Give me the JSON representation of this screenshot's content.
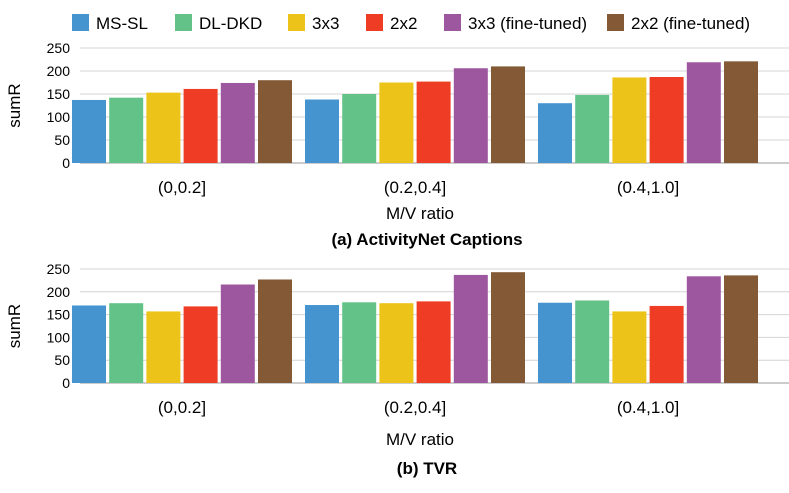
{
  "legend": [
    {
      "label": "MS-SL",
      "color": "#4594d0"
    },
    {
      "label": "DL-DKD",
      "color": "#62c288"
    },
    {
      "label": "3x3",
      "color": "#ecc319"
    },
    {
      "label": "2x2",
      "color": "#ee3d24"
    },
    {
      "label": "3x3 (fine-tuned)",
      "color": "#9d579f"
    },
    {
      "label": "2x2 (fine-tuned)",
      "color": "#835a35"
    }
  ],
  "chart_data": [
    {
      "type": "bar",
      "title": "(a) ActivityNet Captions",
      "xlabel": "M/V ratio",
      "ylabel": "sumR",
      "ylim": [
        0,
        250
      ],
      "yticks": [
        0,
        50,
        100,
        150,
        200,
        250
      ],
      "categories": [
        "(0,0.2]",
        "(0.2,0.4]",
        "(0.4,1.0]"
      ],
      "series": [
        {
          "name": "MS-SL",
          "values": [
            137,
            138,
            130
          ]
        },
        {
          "name": "DL-DKD",
          "values": [
            142,
            150,
            148
          ]
        },
        {
          "name": "3x3",
          "values": [
            153,
            175,
            186
          ]
        },
        {
          "name": "2x2",
          "values": [
            161,
            177,
            187
          ]
        },
        {
          "name": "3x3 (fine-tuned)",
          "values": [
            174,
            206,
            219
          ]
        },
        {
          "name": "2x2 (fine-tuned)",
          "values": [
            180,
            210,
            221
          ]
        }
      ]
    },
    {
      "type": "bar",
      "title": "(b) TVR",
      "xlabel": "M/V ratio",
      "ylabel": "sumR",
      "ylim": [
        0,
        250
      ],
      "yticks": [
        0,
        50,
        100,
        150,
        200,
        250
      ],
      "categories": [
        "(0,0.2]",
        "(0.2,0.4]",
        "(0.4,1.0]"
      ],
      "series": [
        {
          "name": "MS-SL",
          "values": [
            170,
            171,
            176
          ]
        },
        {
          "name": "DL-DKD",
          "values": [
            175,
            177,
            181
          ]
        },
        {
          "name": "3x3",
          "values": [
            157,
            175,
            157
          ]
        },
        {
          "name": "2x2",
          "values": [
            168,
            179,
            169
          ]
        },
        {
          "name": "3x3 (fine-tuned)",
          "values": [
            216,
            237,
            234
          ]
        },
        {
          "name": "2x2 (fine-tuned)",
          "values": [
            227,
            243,
            236
          ]
        }
      ]
    }
  ]
}
